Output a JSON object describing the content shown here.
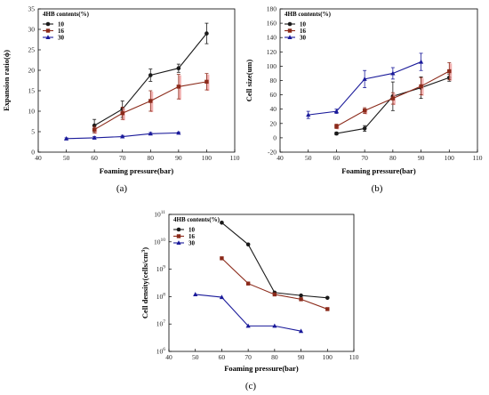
{
  "panel_labels": [
    "(a)",
    "(b)",
    "(c)"
  ],
  "colors": {
    "s10": "#1a1a1a",
    "s16": "#8b2a1a",
    "s30": "#1a1a9a",
    "err_shadow": "#f0a0a0"
  },
  "chart_data": [
    {
      "type": "line",
      "title": "",
      "xlabel": "Foaming pressure(bar)",
      "ylabel": "Expansion ratio(ϕ)",
      "xlim": [
        40,
        110
      ],
      "ylim": [
        0,
        35
      ],
      "xticks": [
        40,
        50,
        60,
        70,
        80,
        90,
        100,
        110
      ],
      "yticks": [
        0,
        5,
        10,
        15,
        20,
        25,
        30,
        35
      ],
      "legend_title": "4HB contents(%)",
      "legend_position": "top-left",
      "grid": false,
      "series": [
        {
          "name": "10",
          "x": [
            60,
            70,
            80,
            90,
            100
          ],
          "y": [
            6.5,
            10.5,
            18.8,
            20.5,
            29
          ],
          "err": [
            1.5,
            2.0,
            1.5,
            1.0,
            2.5
          ],
          "marker": "circle"
        },
        {
          "name": "16",
          "x": [
            60,
            70,
            80,
            90,
            100
          ],
          "y": [
            5.5,
            9.5,
            12.5,
            16,
            17.2
          ],
          "err": [
            0.8,
            1.5,
            2.5,
            3.0,
            2.0
          ],
          "marker": "square"
        },
        {
          "name": "30",
          "x": [
            50,
            60,
            70,
            80,
            90
          ],
          "y": [
            3.3,
            3.5,
            3.8,
            4.5,
            4.7
          ],
          "err": [
            0.2,
            0.3,
            0.3,
            0.3,
            0.2
          ],
          "marker": "triangle"
        }
      ]
    },
    {
      "type": "line",
      "title": "",
      "xlabel": "Foaming pressure(bar)",
      "ylabel": "Cell size(um)",
      "xlim": [
        40,
        110
      ],
      "ylim": [
        -20,
        180
      ],
      "xticks": [
        40,
        50,
        60,
        70,
        80,
        90,
        100,
        110
      ],
      "yticks": [
        -20,
        0,
        20,
        40,
        60,
        80,
        100,
        120,
        140,
        160,
        180
      ],
      "legend_title": "4HB contents(%)",
      "legend_position": "top-left",
      "grid": false,
      "series": [
        {
          "name": "10",
          "x": [
            60,
            70,
            80,
            90,
            100
          ],
          "y": [
            6,
            13,
            58,
            70,
            84
          ],
          "err": [
            2,
            4,
            20,
            15,
            5
          ],
          "marker": "circle"
        },
        {
          "name": "16",
          "x": [
            60,
            70,
            80,
            90,
            100
          ],
          "y": [
            16,
            38,
            55,
            72,
            93
          ],
          "err": [
            3,
            4,
            8,
            12,
            12
          ],
          "marker": "square"
        },
        {
          "name": "30",
          "x": [
            50,
            60,
            70,
            80,
            90
          ],
          "y": [
            32,
            37,
            82,
            90,
            106
          ],
          "err": [
            5,
            3,
            12,
            8,
            12
          ],
          "marker": "triangle"
        }
      ]
    },
    {
      "type": "line",
      "title": "",
      "xlabel": "Foaming pressure(bar)",
      "ylabel": "Cell density(cells/cm³)",
      "xlim": [
        40,
        110
      ],
      "yscale": "log",
      "ylim": [
        1000000.0,
        100000000000.0
      ],
      "xticks": [
        40,
        50,
        60,
        70,
        80,
        90,
        100,
        110
      ],
      "yticks": [
        "10^6",
        "10^7",
        "10^8",
        "10^9",
        "10^10",
        "10^11"
      ],
      "legend_title": "4HB contents(%)",
      "legend_position": "top-left",
      "grid": false,
      "series": [
        {
          "name": "10",
          "x": [
            60,
            70,
            80,
            90,
            100
          ],
          "y": [
            50000000000.0,
            8000000000.0,
            140000000.0,
            110000000.0,
            90000000.0
          ],
          "marker": "circle"
        },
        {
          "name": "16",
          "x": [
            60,
            70,
            80,
            90,
            100
          ],
          "y": [
            2500000000.0,
            300000000.0,
            120000000.0,
            80000000.0,
            35000000.0
          ],
          "marker": "square"
        },
        {
          "name": "30",
          "x": [
            50,
            60,
            70,
            80,
            90
          ],
          "y": [
            120000000.0,
            95000000.0,
            8500000.0,
            8500000.0,
            5500000.0
          ],
          "marker": "triangle"
        }
      ]
    }
  ]
}
